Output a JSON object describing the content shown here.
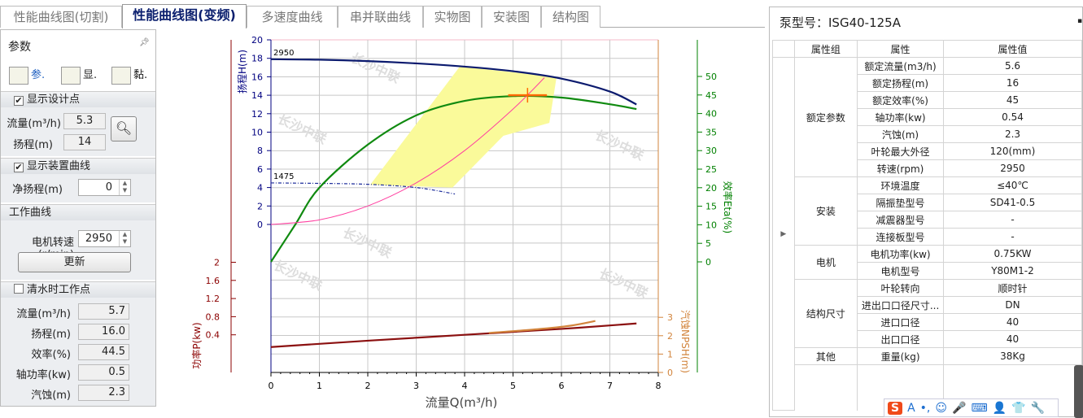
{
  "tabs": [
    "性能曲线图(切割)",
    "性能曲线图(变频)",
    "多速度曲线",
    "串并联曲线",
    "实物图",
    "安装图",
    "结构图"
  ],
  "active_tab": 1,
  "left": {
    "title": "参数",
    "tools": [
      "参.",
      "显.",
      "黏."
    ],
    "design": {
      "label": "显示设计点",
      "checked": true,
      "flow_label": "流量(m³/h)",
      "flow": "5.3",
      "head_label": "扬程(m)",
      "head": "14"
    },
    "system": {
      "label": "显示装置曲线",
      "checked": true,
      "static_label": "净扬程(m)",
      "static": "0"
    },
    "work": {
      "label": "工作曲线",
      "speed_label": "电机转速(r/min)",
      "speed": "2950",
      "update": "更新"
    },
    "clean": {
      "label": "清水时工作点",
      "checked": false,
      "rows": [
        {
          "label": "流量(m³/h)",
          "value": "5.7"
        },
        {
          "label": "扬程(m)",
          "value": "16.0"
        },
        {
          "label": "效率(%)",
          "value": "44.5"
        },
        {
          "label": "轴功率(kw)",
          "value": "0.5"
        },
        {
          "label": "汽蚀(m)",
          "value": "2.3"
        }
      ]
    }
  },
  "right": {
    "title": "泵型号：ISG40-125A",
    "headers": [
      "属性组",
      "属性",
      "属性值"
    ],
    "groups": [
      {
        "name": "额定参数",
        "rows": [
          [
            "额定流量(m3/h)",
            "5.6"
          ],
          [
            "额定扬程(m)",
            "16"
          ],
          [
            "额定效率(%)",
            "45"
          ],
          [
            "轴功率(kw)",
            "0.54"
          ],
          [
            "汽蚀(m)",
            "2.3"
          ],
          [
            "叶轮最大外径",
            "120(mm)"
          ],
          [
            "转速(rpm)",
            "2950"
          ]
        ]
      },
      {
        "name": "安装",
        "rows": [
          [
            "环境温度",
            "≤40℃"
          ],
          [
            "隔振垫型号",
            "SD41-0.5"
          ],
          [
            "减震器型号",
            "-"
          ],
          [
            "连接板型号",
            "-"
          ]
        ]
      },
      {
        "name": "电机",
        "rows": [
          [
            "电机功率(kw)",
            "0.75KW"
          ],
          [
            "电机型号",
            "Y80M1-2"
          ]
        ]
      },
      {
        "name": "结构尺寸",
        "rows": [
          [
            "叶轮转向",
            "顺时针"
          ],
          [
            "进出口口径尺寸...",
            "DN"
          ],
          [
            "进口口径",
            "40"
          ],
          [
            "出口口径",
            "40"
          ]
        ]
      },
      {
        "name": "其他",
        "rows": [
          [
            "重量(kg)",
            "38Kg"
          ]
        ]
      }
    ]
  },
  "ime": {
    "logo": "S",
    "items": [
      "A",
      "•,",
      "☺",
      "🎤",
      "⌨",
      "👤",
      "👕",
      "🔧"
    ]
  },
  "chart_data": {
    "type": "line",
    "xlabel": "流量Q(m³/h)",
    "xlim": [
      0,
      8
    ],
    "xticks": [
      0,
      1,
      2,
      3,
      4,
      5,
      6,
      7,
      8
    ],
    "watermark": "长沙中联",
    "axes": {
      "head": {
        "label": "扬程H(m)",
        "range": [
          0,
          20
        ],
        "ticks": [
          0,
          2,
          4,
          6,
          8,
          10,
          12,
          14,
          16,
          18,
          20
        ],
        "color": "#000080"
      },
      "power": {
        "label": "功率P(kw)",
        "ticks": [
          0.4,
          0.8,
          1.2,
          1.6,
          2
        ],
        "color": "#8b0000"
      },
      "npsh": {
        "label": "汽蚀NPSH(m)",
        "ticks": [
          0,
          1,
          2,
          3
        ],
        "color": "#d2843c"
      },
      "eta": {
        "label": "效率Eta(%)",
        "ticks": [
          0,
          5,
          10,
          15,
          20,
          25,
          30,
          35,
          40,
          45,
          50
        ],
        "color": "#008000"
      }
    },
    "series": [
      {
        "name": "H-2950",
        "label": "2950",
        "axis": "head",
        "color": "#0b1a6e",
        "x": [
          0,
          1,
          2,
          3,
          4,
          5,
          6,
          7,
          7.55
        ],
        "y": [
          17.9,
          17.85,
          17.7,
          17.45,
          17.1,
          16.6,
          15.8,
          14.4,
          13.0
        ]
      },
      {
        "name": "H-1475",
        "label": "1475",
        "axis": "head",
        "color": "#1a2a9a",
        "dash": true,
        "x": [
          0,
          1,
          2,
          3,
          3.8
        ],
        "y": [
          4.5,
          4.45,
          4.35,
          4.0,
          3.3
        ]
      },
      {
        "name": "Eta",
        "axis": "eta",
        "color": "#108a10",
        "x": [
          0,
          0.5,
          1,
          2,
          3,
          4,
          5,
          6,
          7,
          7.55
        ],
        "y": [
          0,
          10,
          20,
          31.6,
          39.5,
          43.4,
          44.7,
          44.3,
          42.5,
          41.2
        ]
      },
      {
        "name": "System",
        "axis": "head",
        "color": "#ff3fa0",
        "x": [
          0,
          1,
          2,
          3,
          4,
          5,
          5.65
        ],
        "y": [
          0,
          0.5,
          2,
          4.5,
          8,
          12.5,
          15.9
        ]
      },
      {
        "name": "P",
        "axis": "power",
        "color": "#8b1010",
        "x": [
          0,
          2,
          4,
          6,
          7.55
        ],
        "y": [
          0.13,
          0.27,
          0.4,
          0.53,
          0.65
        ]
      },
      {
        "name": "NPSH",
        "axis": "npsh",
        "color": "#d2843c",
        "x": [
          4.5,
          5.5,
          6.2,
          6.7
        ],
        "y": [
          2.15,
          2.35,
          2.55,
          2.8
        ]
      }
    ],
    "region": {
      "axis": "head",
      "color": "#fafa9a",
      "points": [
        [
          2.05,
          4.3
        ],
        [
          3.9,
          17.1
        ],
        [
          5.9,
          16.0
        ],
        [
          5.75,
          11.0
        ],
        [
          4.8,
          9.6
        ],
        [
          3.75,
          4.0
        ]
      ]
    },
    "design_point": {
      "x": 5.3,
      "y": 14,
      "color": "#ff6a00"
    }
  }
}
